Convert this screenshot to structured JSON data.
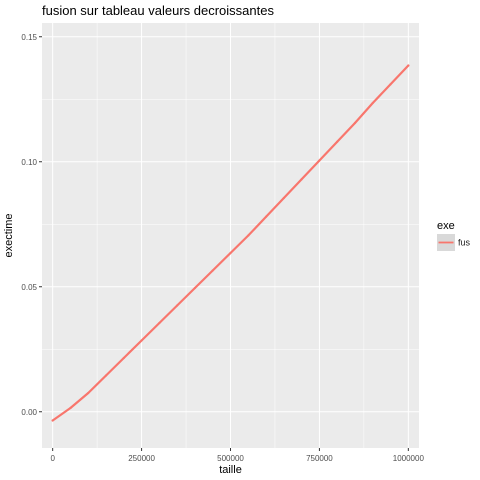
{
  "chart_data": {
    "type": "line",
    "title": "fusion sur tableau valeurs decroissantes",
    "xlabel": "taille",
    "ylabel": "exectime",
    "xlim": [
      -30000,
      1030000
    ],
    "ylim": [
      -0.0145,
      0.1555
    ],
    "x_ticks": [
      0,
      250000,
      500000,
      750000,
      1000000
    ],
    "x_tick_labels": [
      "0",
      "250000",
      "500000",
      "750000",
      "1000000"
    ],
    "y_ticks": [
      0.0,
      0.05,
      0.1,
      0.15
    ],
    "y_tick_labels": [
      "0.00",
      "0.05",
      "0.10",
      "0.15"
    ],
    "grid": true,
    "legend": {
      "title": "exe",
      "placement": "right",
      "entries": [
        "fus"
      ]
    },
    "series": [
      {
        "name": "fus",
        "color": "#F8766D",
        "x": [
          0,
          50000,
          100000,
          150000,
          200000,
          250000,
          300000,
          350000,
          400000,
          450000,
          500000,
          550000,
          600000,
          650000,
          700000,
          750000,
          800000,
          850000,
          900000,
          950000,
          1000000
        ],
        "y": [
          -0.0035,
          0.0015,
          0.0075,
          0.0145,
          0.0215,
          0.0285,
          0.0355,
          0.0425,
          0.0495,
          0.0565,
          0.0635,
          0.0705,
          0.078,
          0.0855,
          0.093,
          0.1005,
          0.108,
          0.1155,
          0.1235,
          0.131,
          0.1385
        ]
      }
    ]
  },
  "colors": {
    "panel_background": "#EBEBEB",
    "grid_major": "#FFFFFF",
    "legend_key_background": "#D9D9D9"
  }
}
